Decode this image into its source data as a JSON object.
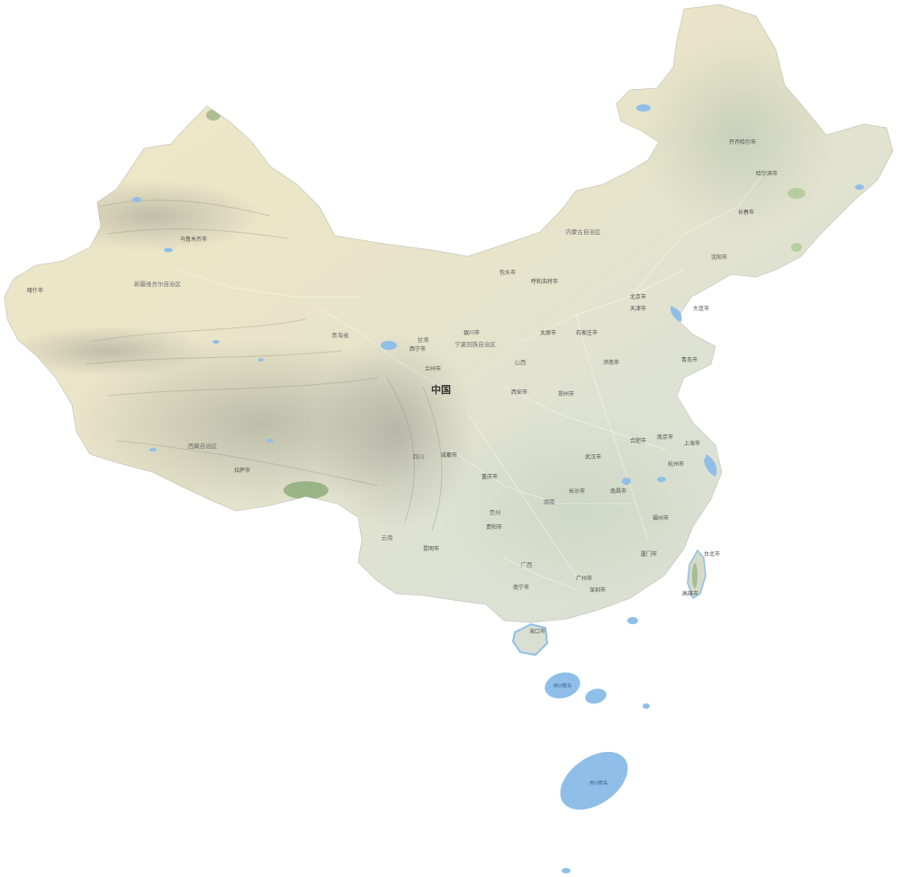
{
  "map": {
    "country_label": "中国",
    "region_labels": [
      "新疆维吾尔自治区",
      "西藏自治区",
      "内蒙古自治区",
      "青海省",
      "甘肃",
      "四川",
      "贵州",
      "云南",
      "广西",
      "湖南",
      "山西",
      "宁夏回族自治区"
    ],
    "city_labels": [
      "北京市",
      "天津市",
      "石家庄市",
      "太原市",
      "呼和浩特市",
      "沈阳市",
      "长春市",
      "哈尔滨市",
      "上海市",
      "南京市",
      "杭州市",
      "合肥市",
      "福州市",
      "南昌市",
      "济南市",
      "郑州市",
      "武汉市",
      "长沙市",
      "广州市",
      "深圳市",
      "南宁市",
      "海口市",
      "重庆市",
      "成都市",
      "贵阳市",
      "昆明市",
      "拉萨市",
      "西安市",
      "兰州市",
      "西宁市",
      "银川市",
      "乌鲁木齐市",
      "大连市",
      "青岛市",
      "厦门市",
      "台北市",
      "高雄市",
      "齐齐哈尔市",
      "包头市",
      "喀什市"
    ],
    "sea_labels": [
      "西沙群岛",
      "南沙群岛"
    ],
    "colors": {
      "land_north": "#efe7c4",
      "land_south": "#d9e0d2",
      "mountain_shade": "#a9ab9e",
      "forest": "#8fae7a",
      "water": "#8fbfe8",
      "background": "#ffffff"
    }
  }
}
